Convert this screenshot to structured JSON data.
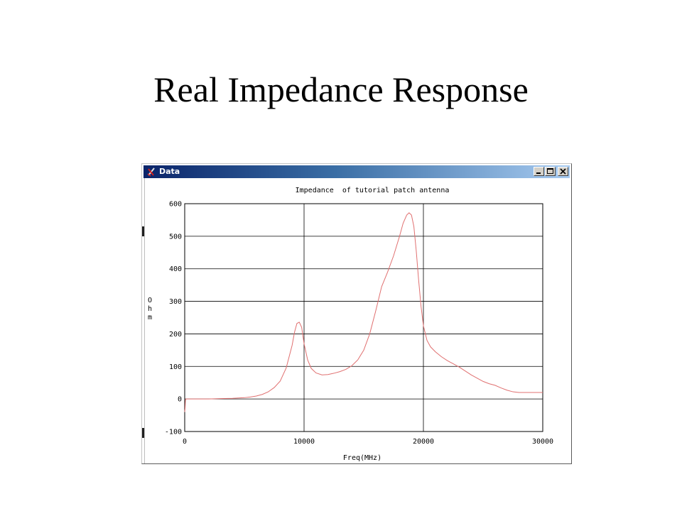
{
  "slide": {
    "title": "Real Impedance Response"
  },
  "window": {
    "title": "Data",
    "icons": {
      "app": "plot-app-icon",
      "minimize": "minimize-icon",
      "maximize": "maximize-icon",
      "close": "close-icon"
    },
    "titlebar_colors": [
      "#0a246a",
      "#a6caf0"
    ]
  },
  "chart_data": {
    "type": "line",
    "title": "Impedance  of tutorial patch antenna",
    "xlabel": "Freq(MHz)",
    "ylabel": "Ohm",
    "xlim": [
      0,
      30000
    ],
    "ylim": [
      -100,
      600
    ],
    "xticks": [
      0,
      10000,
      20000,
      30000
    ],
    "yticks": [
      -100,
      0,
      100,
      200,
      300,
      400,
      500,
      600
    ],
    "grid": true,
    "line_color": "#e07070",
    "series": [
      {
        "x": [
          0,
          30,
          60,
          100,
          200,
          500,
          1000,
          2000,
          3000,
          4000,
          5000,
          5500,
          6000,
          6500,
          7000,
          7500,
          8000,
          8500,
          9000,
          9200,
          9400,
          9600,
          9800,
          10000,
          10300,
          10600,
          11000,
          11500,
          12000,
          12500,
          13000,
          13500,
          14000,
          14500,
          15000,
          15500,
          16000,
          16500,
          17000,
          17500,
          18000,
          18300,
          18600,
          18800,
          19000,
          19200,
          19400,
          19600,
          19800,
          20000,
          20300,
          20600,
          21000,
          21500,
          22000,
          22500,
          23000,
          23500,
          24000,
          24500,
          25000,
          25500,
          26000,
          26500,
          27000,
          27500,
          28000,
          28500,
          29000,
          30000
        ],
        "y": [
          -40,
          -30,
          -5,
          0,
          0,
          0,
          0,
          0,
          1,
          2,
          4,
          6,
          9,
          14,
          22,
          35,
          55,
          95,
          165,
          205,
          232,
          236,
          220,
          170,
          120,
          94,
          80,
          74,
          75,
          79,
          84,
          91,
          102,
          120,
          150,
          200,
          270,
          345,
          390,
          440,
          500,
          540,
          565,
          572,
          565,
          530,
          455,
          365,
          285,
          225,
          180,
          160,
          145,
          130,
          118,
          108,
          98,
          86,
          74,
          64,
          54,
          47,
          42,
          34,
          27,
          22,
          20,
          20,
          20,
          20
        ]
      }
    ]
  }
}
